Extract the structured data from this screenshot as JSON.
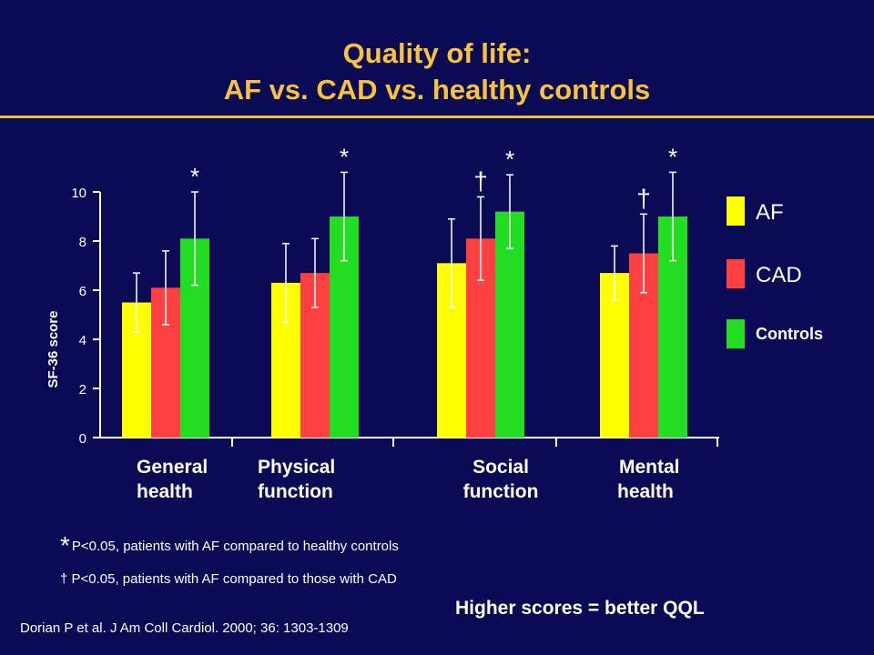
{
  "title": {
    "line1": "Quality of life:",
    "line2": "AF vs. CAD vs. healthy controls"
  },
  "colors": {
    "background": "#0a0a55",
    "title": "#f7c23e",
    "AF": "#ffff00",
    "CAD": "#ff4040",
    "Controls": "#22dd22"
  },
  "chart_data": {
    "type": "bar",
    "categories": [
      "General health",
      "Physical function",
      "Social function",
      "Mental health"
    ],
    "category_lines": [
      [
        "General",
        "health"
      ],
      [
        "Physical",
        "function"
      ],
      [
        "Social",
        "function"
      ],
      [
        "Mental",
        "health"
      ]
    ],
    "ylabel": "SF-36 score",
    "ylim": [
      0,
      10
    ],
    "yticks": [
      0,
      2,
      4,
      6,
      8,
      10
    ],
    "series": [
      {
        "name": "AF",
        "color": "#ffff00",
        "values": [
          5.5,
          6.3,
          7.1,
          6.7
        ],
        "error": [
          1.2,
          1.6,
          1.8,
          1.1
        ]
      },
      {
        "name": "CAD",
        "color": "#ff4040",
        "values": [
          6.1,
          6.7,
          8.1,
          7.5
        ],
        "error": [
          1.5,
          1.4,
          1.7,
          1.6
        ]
      },
      {
        "name": "Controls",
        "color": "#22dd22",
        "values": [
          8.1,
          9.0,
          9.2,
          9.0
        ],
        "error": [
          1.9,
          1.8,
          1.5,
          1.8
        ]
      }
    ],
    "annotations": [
      {
        "category": 0,
        "text": "*"
      },
      {
        "category": 1,
        "text": "*"
      },
      {
        "category": 2,
        "text": "† *"
      },
      {
        "category": 3,
        "text": "† *"
      }
    ],
    "legend": {
      "position": "right",
      "items": [
        "AF",
        "CAD",
        "Controls"
      ]
    }
  },
  "footnotes": {
    "star_symbol": "*",
    "star_text": "P<0.05, patients with AF compared to healthy controls",
    "dagger_text": "† P<0.05, patients with AF compared to those with CAD"
  },
  "summary": "Higher scores = better QQL",
  "citation": "Dorian P et al. J Am Coll Cardiol. 2000; 36: 1303-1309"
}
